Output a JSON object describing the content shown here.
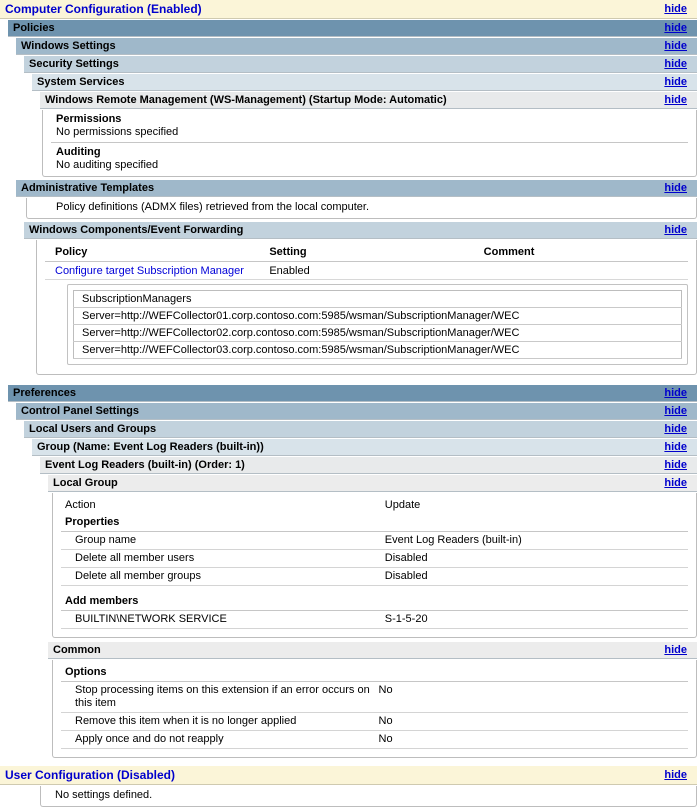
{
  "labels": {
    "hide": "hide"
  },
  "colors": {
    "header_band_yellow": "#fbf5d8",
    "header_text_blue": "#0000cc",
    "band_level1": "#6e93ae",
    "band_level2": "#9fb8ca",
    "band_level3": "#c2d2dd",
    "band_level4": "#d8e3ea",
    "band_gray_light": "#e8eaeb",
    "band_gray": "#ececec",
    "link_blue": "#0000d8",
    "panel_border": "#bdbdbd"
  },
  "bands": {
    "computer_configuration": "Computer Configuration (Enabled)",
    "policies": "Policies",
    "windows_settings": "Windows Settings",
    "security_settings": "Security Settings",
    "system_services": "System Services",
    "wsman": "Windows Remote Management (WS-Management) (Startup Mode: Automatic)",
    "admin_templates": "Administrative Templates",
    "windows_components": "Windows Components/Event Forwarding",
    "preferences": "Preferences",
    "control_panel": "Control Panel Settings",
    "local_users_groups": "Local Users and Groups",
    "group_name": "Group (Name: Event Log Readers (built-in))",
    "event_log_readers": "Event Log Readers (built-in) (Order: 1)",
    "local_group": "Local Group",
    "common": "Common",
    "user_configuration": "User Configuration (Disabled)"
  },
  "wsman_panel": {
    "permissions_title": "Permissions",
    "permissions_value": "No permissions specified",
    "auditing_title": "Auditing",
    "auditing_value": "No auditing specified"
  },
  "admin_templates_note": "Policy definitions (ADMX files) retrieved from the local computer.",
  "policy_table": {
    "headers": {
      "policy": "Policy",
      "setting": "Setting",
      "comment": "Comment"
    },
    "row": {
      "policy": "Configure target Subscription Manager",
      "setting": "Enabled",
      "comment": ""
    },
    "subscription_managers": {
      "header": "SubscriptionManagers",
      "rows": [
        "Server=http://WEFCollector01.corp.contoso.com:5985/wsman/SubscriptionManager/WEC",
        "Server=http://WEFCollector02.corp.contoso.com:5985/wsman/SubscriptionManager/WEC",
        "Server=http://WEFCollector03.corp.contoso.com:5985/wsman/SubscriptionManager/WEC"
      ]
    }
  },
  "local_group_panel": {
    "action_label": "Action",
    "action_value": "Update",
    "properties_title": "Properties",
    "rows": [
      {
        "label": "Group name",
        "value": "Event Log Readers (built-in)"
      },
      {
        "label": "Delete all member users",
        "value": "Disabled"
      },
      {
        "label": "Delete all member groups",
        "value": "Disabled"
      }
    ],
    "add_members_title": "Add members",
    "member": {
      "label": "BUILTIN\\NETWORK SERVICE",
      "value": "S-1-5-20"
    }
  },
  "common_panel": {
    "options_title": "Options",
    "rows": [
      {
        "label": "Stop processing items on this extension if an error occurs on this item",
        "value": "No"
      },
      {
        "label": "Remove this item when it is no longer applied",
        "value": "No"
      },
      {
        "label": "Apply once and do not reapply",
        "value": "No"
      }
    ]
  },
  "user_config_note": "No settings defined."
}
